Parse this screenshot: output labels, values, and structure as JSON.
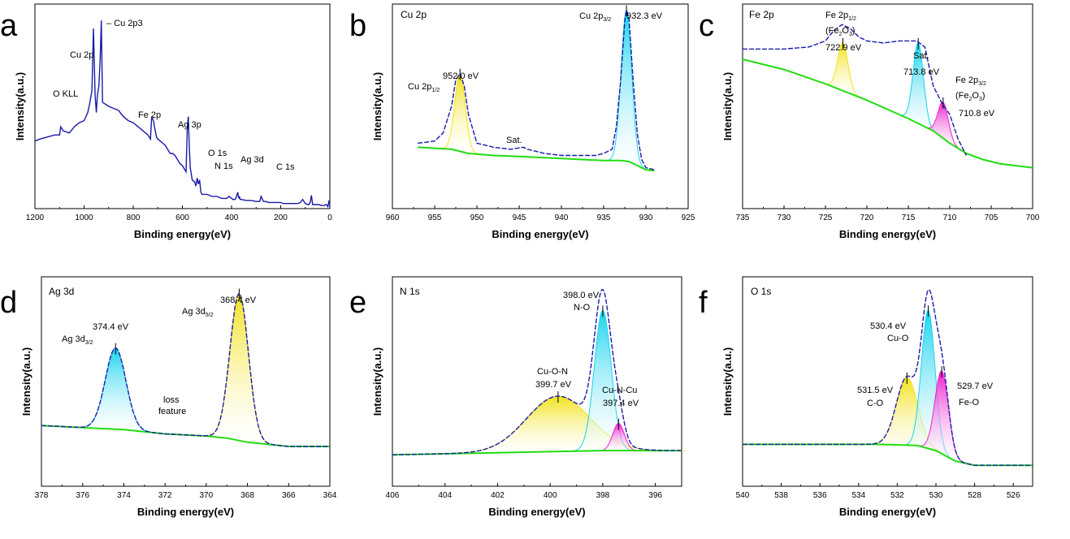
{
  "figure": {
    "ylabel": "Intensity(a.u.)",
    "xlabel": "Binding energy(eV)"
  },
  "colors": {
    "envelope": "#1a1aa8",
    "background": "#22dd11",
    "data": "#888888",
    "yellow": "#f2e21a",
    "cyan": "#18d3ee",
    "magenta": "#ee22cc"
  },
  "chart_data": [
    {
      "panel": "a",
      "type": "line",
      "title": "",
      "xlim": [
        1200,
        0
      ],
      "xticks": [
        "1200",
        "1000",
        "800",
        "600",
        "400",
        "200",
        "0"
      ],
      "xlabel": "Binding energy(eV)",
      "ylabel": "Intensity(a.u.)",
      "series": [
        {
          "name": "survey",
          "color": "#1a1aa8",
          "x": [
            1200,
            1180,
            1150,
            1120,
            1100,
            1095,
            1085,
            1060,
            1040,
            1020,
            1000,
            985,
            978,
            972,
            968,
            962,
            955,
            950,
            946,
            940,
            935,
            930,
            925,
            900,
            880,
            860,
            840,
            820,
            800,
            780,
            760,
            740,
            730,
            725,
            718,
            712,
            705,
            700,
            690,
            680,
            670,
            660,
            650,
            640,
            630,
            620,
            610,
            600,
            590,
            585,
            580,
            576,
            572,
            568,
            560,
            550,
            545,
            540,
            535,
            530,
            525,
            520,
            510,
            500,
            480,
            460,
            440,
            420,
            410,
            400,
            398,
            395,
            390,
            385,
            380,
            375,
            372,
            370,
            368,
            365,
            360,
            340,
            320,
            300,
            285,
            280,
            270,
            260,
            250,
            240,
            230,
            220,
            210,
            200,
            190,
            170,
            150,
            130,
            120,
            110,
            100,
            90,
            85,
            80,
            75,
            70,
            65,
            55,
            45,
            35,
            25,
            15,
            8,
            3,
            0
          ],
          "y": [
            0.33,
            0.34,
            0.35,
            0.36,
            0.36,
            0.4,
            0.38,
            0.37,
            0.4,
            0.42,
            0.43,
            0.47,
            0.51,
            0.55,
            0.58,
            0.88,
            0.55,
            0.47,
            0.55,
            0.6,
            0.72,
            0.92,
            0.52,
            0.5,
            0.49,
            0.48,
            0.45,
            0.43,
            0.42,
            0.4,
            0.38,
            0.36,
            0.34,
            0.45,
            0.43,
            0.39,
            0.35,
            0.34,
            0.33,
            0.32,
            0.31,
            0.29,
            0.27,
            0.27,
            0.26,
            0.24,
            0.22,
            0.21,
            0.19,
            0.18,
            0.4,
            0.45,
            0.3,
            0.2,
            0.14,
            0.13,
            0.11,
            0.15,
            0.12,
            0.14,
            0.08,
            0.07,
            0.07,
            0.07,
            0.06,
            0.06,
            0.05,
            0.05,
            0.06,
            0.05,
            0.05,
            0.045,
            0.045,
            0.045,
            0.06,
            0.08,
            0.06,
            0.05,
            0.06,
            0.045,
            0.045,
            0.04,
            0.04,
            0.035,
            0.035,
            0.06,
            0.035,
            0.035,
            0.03,
            0.03,
            0.03,
            0.03,
            0.03,
            0.03,
            0.025,
            0.025,
            0.025,
            0.025,
            0.03,
            0.045,
            0.025,
            0.02,
            0.02,
            0.03,
            0.065,
            0.02,
            0.02,
            0.02,
            0.02,
            0.015,
            0.015,
            0.02,
            0.01,
            0.04,
            0.01
          ]
        }
      ],
      "labels": [
        {
          "text": "– Cu 2p3",
          "x": 940,
          "y": 0.98
        },
        {
          "text": "Cu 2p",
          "x": 985,
          "y": 0.81
        },
        {
          "text": "O KLL",
          "x": 1095,
          "y": 0.58
        },
        {
          "text": "Fe 2p",
          "x": 745,
          "y": 0.5
        },
        {
          "text": "Ag 3p",
          "x": 612,
          "y": 0.45
        },
        {
          "text": "O 1s",
          "x": 525,
          "y": 0.31
        },
        {
          "text": "N 1s",
          "x": 405,
          "y": 0.23
        },
        {
          "text": "Ag 3d",
          "x": 345,
          "y": 0.27
        },
        {
          "text": "C 1s",
          "x": 190,
          "y": 0.22
        }
      ]
    },
    {
      "panel": "b",
      "type": "line",
      "title": "Cu 2p",
      "xlim": [
        960,
        925
      ],
      "xticks": [
        "960",
        "955",
        "950",
        "945",
        "940",
        "935",
        "930",
        "925"
      ],
      "xlabel": "Binding energy(eV)",
      "ylabel": "Intensity(a.u.)",
      "series": [
        {
          "name": "background",
          "color": "#22dd11",
          "x": [
            957,
            953,
            951,
            948,
            945,
            940,
            935,
            933,
            932,
            931,
            930,
            929
          ],
          "y": [
            0.3,
            0.29,
            0.27,
            0.26,
            0.255,
            0.245,
            0.235,
            0.235,
            0.23,
            0.21,
            0.19,
            0.185
          ]
        },
        {
          "name": "data/envelope",
          "color": "#1a1aa8",
          "x": [
            957,
            955,
            954,
            953,
            952.5,
            952,
            951.5,
            951,
            950,
            948,
            946,
            944.5,
            944,
            942,
            940,
            938,
            936,
            935,
            934,
            933.5,
            933,
            932.5,
            932.3,
            932,
            931.5,
            931,
            930.5,
            930,
            929
          ],
          "y": [
            0.32,
            0.33,
            0.37,
            0.5,
            0.63,
            0.66,
            0.6,
            0.46,
            0.32,
            0.3,
            0.29,
            0.3,
            0.29,
            0.27,
            0.26,
            0.26,
            0.26,
            0.27,
            0.29,
            0.4,
            0.62,
            0.92,
            0.97,
            0.93,
            0.62,
            0.36,
            0.24,
            0.2,
            0.19
          ]
        }
      ],
      "peaks": [
        {
          "name": "Cu 2p1/2",
          "center": 952.0,
          "height": 0.66,
          "color": "#f2e21a"
        },
        {
          "name": "Cu 2p3/2",
          "center": 932.3,
          "height": 0.97,
          "color": "#18d3ee"
        }
      ],
      "labels": [
        {
          "text": "Cu 2p",
          "sub": "3/2",
          "value": "932.3 eV",
          "x": 932.3
        },
        {
          "text": "952.0 eV",
          "x": 952.0
        },
        {
          "text": "Cu 2p",
          "sub": "1/2",
          "x": 952.0
        },
        {
          "text": "Sat.",
          "x": 944.5
        }
      ]
    },
    {
      "panel": "c",
      "type": "line",
      "title": "Fe 2p",
      "xlim": [
        735,
        700
      ],
      "xticks": [
        "735",
        "730",
        "725",
        "720",
        "715",
        "710",
        "705",
        "700"
      ],
      "xlabel": "Binding energy(eV)",
      "ylabel": "Intensity(a.u.)",
      "series": [
        {
          "name": "background",
          "color": "#22dd11",
          "x": [
            735,
            730,
            725,
            720,
            715,
            712,
            710,
            708,
            706,
            704,
            702,
            700
          ],
          "y": [
            0.73,
            0.68,
            0.61,
            0.53,
            0.44,
            0.38,
            0.32,
            0.27,
            0.24,
            0.22,
            0.21,
            0.2
          ]
        },
        {
          "name": "envelope",
          "color": "#1a1aa8",
          "x": [
            735,
            730,
            727,
            725,
            724,
            723,
            722,
            721,
            720,
            718,
            716,
            714,
            713,
            712,
            711,
            710,
            709,
            708
          ],
          "y": [
            0.78,
            0.78,
            0.79,
            0.82,
            0.87,
            0.9,
            0.88,
            0.84,
            0.82,
            0.81,
            0.82,
            0.82,
            0.79,
            0.6,
            0.52,
            0.46,
            0.34,
            0.26
          ]
        }
      ],
      "peaks": [
        {
          "name": "Fe 2p1/2 (Fe2O3)",
          "center": 722.9,
          "height": 0.81,
          "color": "#f2e21a"
        },
        {
          "name": "Sat.",
          "center": 713.8,
          "height": 0.81,
          "color": "#18d3ee"
        },
        {
          "name": "Fe 2p3/2 (Fe2O3)",
          "center": 710.8,
          "height": 0.52,
          "color": "#ee22cc"
        }
      ],
      "labels": [
        {
          "text": "Fe 2p",
          "sub": "1/2"
        },
        {
          "text": "(Fe",
          "sub2": "2",
          "tail": "O",
          "sub3": "3",
          "end": ")"
        },
        {
          "text": "722.9 eV"
        },
        {
          "text": "Sat."
        },
        {
          "text": "713.8 eV"
        },
        {
          "text": "Fe 2p",
          "sub": "3/2"
        },
        {
          "text": "710.8 eV"
        }
      ]
    },
    {
      "panel": "d",
      "type": "line",
      "title": "Ag 3d",
      "xlim": [
        378,
        364
      ],
      "xticks": [
        "378",
        "376",
        "374",
        "372",
        "370",
        "368",
        "366",
        "364"
      ],
      "xlabel": "Binding energy(eV)",
      "ylabel": "Intensity(a.u.)",
      "series": [
        {
          "name": "background",
          "color": "#22dd11",
          "x": [
            378,
            376,
            374,
            372,
            370,
            369,
            368,
            367,
            366,
            364
          ],
          "y": [
            0.29,
            0.28,
            0.27,
            0.25,
            0.24,
            0.23,
            0.21,
            0.2,
            0.19,
            0.19
          ]
        }
      ],
      "peaks": [
        {
          "name": "Ag 3d3/2",
          "center": 374.4,
          "height": 0.66,
          "width": 0.5,
          "color": "#18d3ee"
        },
        {
          "name": "Ag 3d5/2",
          "center": 368.4,
          "height": 0.92,
          "width": 0.45,
          "color": "#f2e21a"
        }
      ],
      "labels": [
        {
          "text": "Ag 3d",
          "sub": "5/2"
        },
        {
          "text": "368.4 eV"
        },
        {
          "text": "374.4 eV"
        },
        {
          "text": "Ag 3d",
          "sub": "3/2"
        },
        {
          "text": "loss"
        },
        {
          "text": "feature"
        }
      ]
    },
    {
      "panel": "e",
      "type": "line",
      "title": "N 1s",
      "xlim": [
        406,
        395
      ],
      "xticks": [
        "406",
        "404",
        "402",
        "400",
        "398",
        "396"
      ],
      "xlabel": "Binding energy(eV)",
      "ylabel": "Intensity(a.u.)",
      "series": [
        {
          "name": "background",
          "color": "#22dd11",
          "x": [
            406,
            404,
            402,
            400,
            398,
            396,
            395
          ],
          "y": [
            0.15,
            0.155,
            0.16,
            0.165,
            0.17,
            0.17,
            0.17
          ]
        }
      ],
      "peaks": [
        {
          "name": "Cu-O-N",
          "center": 399.7,
          "height": 0.43,
          "width": 1.2,
          "color": "#f2e21a"
        },
        {
          "name": "N-O",
          "center": 398.0,
          "height": 0.84,
          "width": 0.32,
          "color": "#18d3ee"
        },
        {
          "name": "Cu-N-Cu",
          "center": 397.4,
          "height": 0.3,
          "width": 0.22,
          "color": "#ee22cc"
        }
      ],
      "labels": [
        {
          "text": "398.0 eV"
        },
        {
          "text": "N-O"
        },
        {
          "text": "Cu-O-N"
        },
        {
          "text": "399.7 eV"
        },
        {
          "text": "Cu-N-Cu"
        },
        {
          "text": "397.4 eV"
        }
      ]
    },
    {
      "panel": "f",
      "type": "line",
      "title": "O 1s",
      "xlim": [
        540,
        525
      ],
      "xticks": [
        "540",
        "538",
        "536",
        "534",
        "532",
        "530",
        "528",
        "526"
      ],
      "xlabel": "Binding energy(eV)",
      "ylabel": "Intensity(a.u.)",
      "series": [
        {
          "name": "background",
          "color": "#22dd11",
          "x": [
            540,
            536,
            533,
            531,
            530,
            529,
            528,
            527,
            526,
            525
          ],
          "y": [
            0.2,
            0.2,
            0.2,
            0.195,
            0.17,
            0.12,
            0.1,
            0.1,
            0.1,
            0.1
          ]
        }
      ],
      "peaks": [
        {
          "name": "C-O",
          "center": 531.5,
          "height": 0.52,
          "width": 0.55,
          "color": "#f2e21a"
        },
        {
          "name": "Cu-O",
          "center": 530.4,
          "height": 0.84,
          "width": 0.35,
          "color": "#18d3ee"
        },
        {
          "name": "Fe-O",
          "center": 529.7,
          "height": 0.55,
          "width": 0.35,
          "color": "#ee22cc"
        }
      ],
      "labels": [
        {
          "text": "530.4 eV"
        },
        {
          "text": "Cu-O"
        },
        {
          "text": "531.5 eV"
        },
        {
          "text": "C-O"
        },
        {
          "text": "529.7 eV"
        },
        {
          "text": "Fe-O"
        }
      ]
    }
  ]
}
